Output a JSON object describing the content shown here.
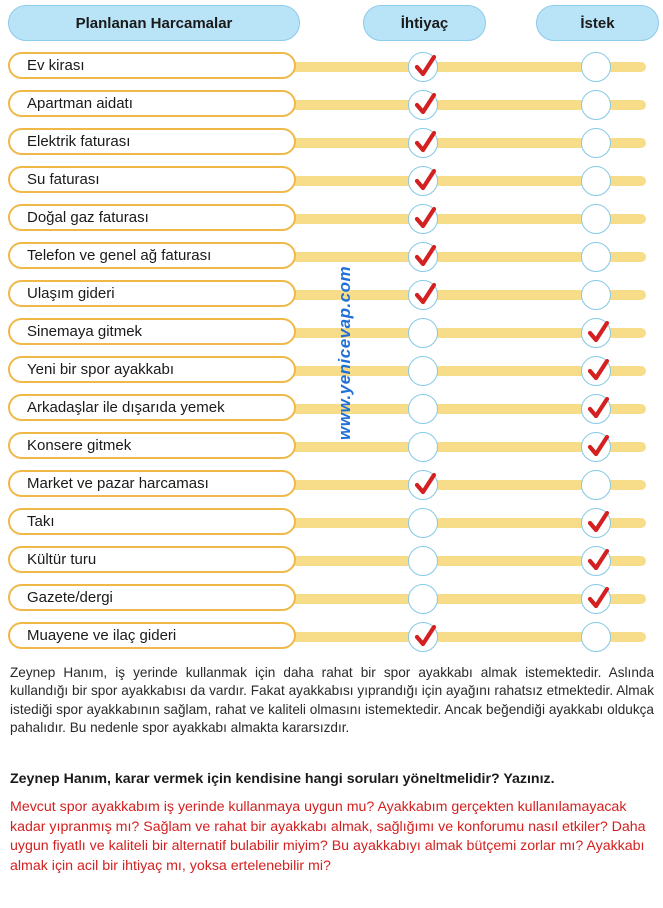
{
  "header": {
    "col1": "Planlanan Harcamalar",
    "col2": "İhtiyaç",
    "col3": "İstek"
  },
  "rows": [
    {
      "label": "Ev kirası",
      "need": true,
      "want": false
    },
    {
      "label": "Apartman aidatı",
      "need": true,
      "want": false
    },
    {
      "label": "Elektrik faturası",
      "need": true,
      "want": false
    },
    {
      "label": "Su faturası",
      "need": true,
      "want": false
    },
    {
      "label": "Doğal gaz faturası",
      "need": true,
      "want": false
    },
    {
      "label": "Telefon ve genel ağ faturası",
      "need": true,
      "want": false
    },
    {
      "label": "Ulaşım gideri",
      "need": true,
      "want": false
    },
    {
      "label": "Sinemaya gitmek",
      "need": false,
      "want": true
    },
    {
      "label": "Yeni bir spor ayakkabı",
      "need": false,
      "want": true
    },
    {
      "label": "Arkadaşlar ile dışarıda yemek",
      "need": false,
      "want": true
    },
    {
      "label": "Konsere gitmek",
      "need": false,
      "want": true
    },
    {
      "label": "Market ve pazar harcaması",
      "need": true,
      "want": false
    },
    {
      "label": "Takı",
      "need": false,
      "want": true
    },
    {
      "label": "Kültür turu",
      "need": false,
      "want": true
    },
    {
      "label": "Gazete/dergi",
      "need": false,
      "want": true
    },
    {
      "label": "Muayene ve ilaç gideri",
      "need": true,
      "want": false
    }
  ],
  "paragraph": "Zeynep Hanım, iş yerinde kullanmak için daha rahat bir spor ayakkabı almak istemektedir. Aslında kullandığı bir spor ayakkabısı da vardır. Fakat ayakkabısı yıprandığı için ayağını rahatsız etmektedir. Almak istediği spor ayakkabının sağlam, rahat ve kaliteli olmasını istemektedir. Ancak beğendiği ayakkabı oldukça pahalıdır. Bu nedenle spor ayakkabı almakta kararsızdır.",
  "question": "Zeynep Hanım, karar vermek için kendisine hangi soruları yöneltmelidir? Yazınız.",
  "answer": "Mevcut spor ayakkabım iş yerinde kullanmaya uygun mu? Ayakkabım gerçekten kullanılamayacak kadar yıpranmış mı? Sağlam ve rahat bir ayakkabı almak, sağlığımı ve konforumu nasıl etkiler? Daha uygun fiyatlı ve kaliteli bir alternatif bulabilir miyim? Bu ayakkabıyı almak bütçemi zorlar mı? Ayakkabı almak için acil bir ihtiyaç mı, yoksa ertelenebilir mi?",
  "watermark": "www.yenicevap.com",
  "colors": {
    "check": "#d42020",
    "header_bg": "#b9e3f7",
    "pill_border": "#f0b848",
    "bar": "#f7dc8a",
    "answer": "#d42020"
  }
}
